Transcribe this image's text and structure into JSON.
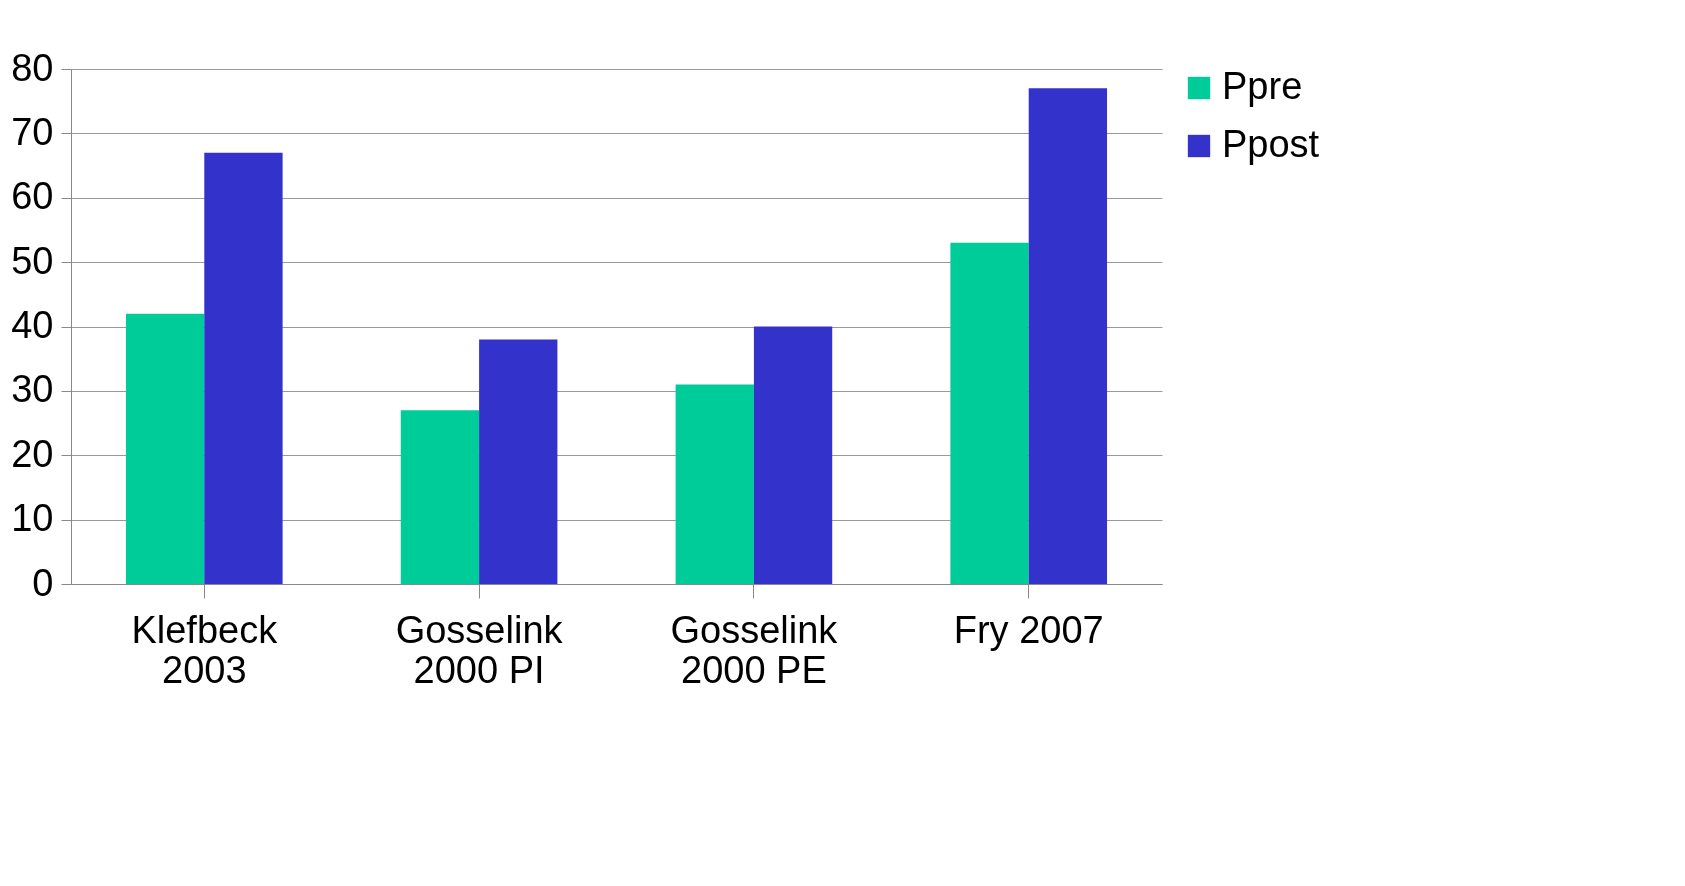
{
  "chart_data": {
    "type": "bar",
    "categories": [
      "Klefbeck\n2003",
      "Gosselink\n2000 PI",
      "Gosselink\n2000 PE",
      "Fry 2007"
    ],
    "series": [
      {
        "name": "Ppre",
        "color": "#00cc99",
        "values": [
          42,
          27,
          31,
          53
        ]
      },
      {
        "name": "Ppost",
        "color": "#3333cc",
        "values": [
          67,
          38,
          40,
          77
        ]
      }
    ],
    "ylim": [
      0,
      80
    ],
    "yticks": [
      0,
      10,
      20,
      30,
      40,
      50,
      60,
      70,
      80
    ],
    "grid": "y",
    "legend": "right"
  }
}
